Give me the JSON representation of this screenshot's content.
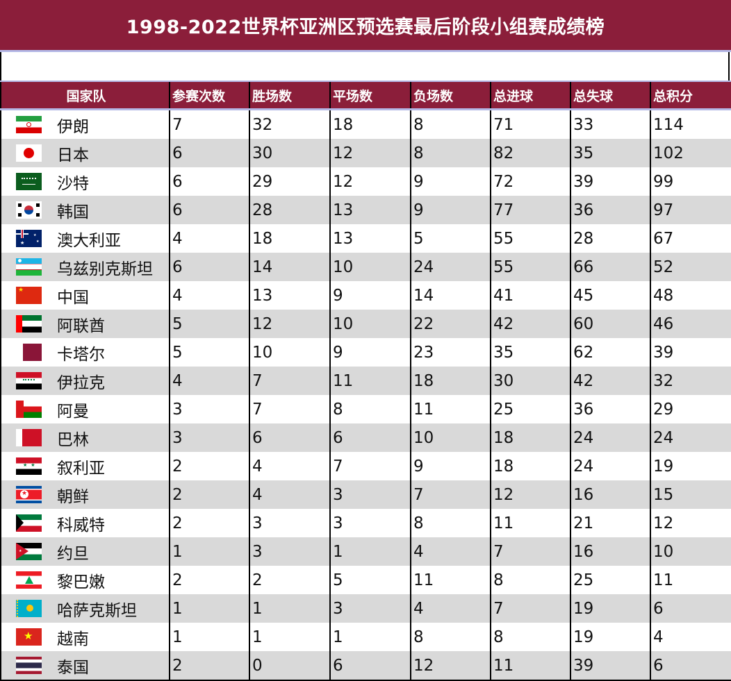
{
  "title": "1998-2022世界杯亚洲区预选赛最后阶段小组赛成绩榜",
  "colors": {
    "header_bg": "#8B1E3A",
    "header_text": "#FFFFFF",
    "row_alt": "#D9D9D9",
    "accent_line": "#B4B8E6"
  },
  "columns": [
    "国家队",
    "参赛次数",
    "胜场数",
    "平场数",
    "负场数",
    "总进球",
    "总失球",
    "总积分"
  ],
  "rows": [
    {
      "team": "伊朗",
      "flag": "iran-flag-icon",
      "apps": "7",
      "w": "32",
      "d": "18",
      "l": "8",
      "gf": "71",
      "ga": "33",
      "pts": "114"
    },
    {
      "team": "日本",
      "flag": "japan-flag-icon",
      "apps": "6",
      "w": "30",
      "d": "12",
      "l": "8",
      "gf": "82",
      "ga": "35",
      "pts": "102"
    },
    {
      "team": "沙特",
      "flag": "saudi-arabia-flag-icon",
      "apps": "6",
      "w": "29",
      "d": "12",
      "l": "9",
      "gf": "72",
      "ga": "39",
      "pts": "99"
    },
    {
      "team": "韩国",
      "flag": "south-korea-flag-icon",
      "apps": "6",
      "w": "28",
      "d": "13",
      "l": "9",
      "gf": "77",
      "ga": "36",
      "pts": "97"
    },
    {
      "team": "澳大利亚",
      "flag": "australia-flag-icon",
      "apps": "4",
      "w": "18",
      "d": "13",
      "l": "5",
      "gf": "55",
      "ga": "28",
      "pts": "67"
    },
    {
      "team": "乌兹别克斯坦",
      "flag": "uzbekistan-flag-icon",
      "apps": "6",
      "w": "14",
      "d": "10",
      "l": "24",
      "gf": "55",
      "ga": "66",
      "pts": "52"
    },
    {
      "team": "中国",
      "flag": "china-flag-icon",
      "apps": "4",
      "w": "13",
      "d": "9",
      "l": "14",
      "gf": "41",
      "ga": "45",
      "pts": "48"
    },
    {
      "team": "阿联酋",
      "flag": "uae-flag-icon",
      "apps": "5",
      "w": "12",
      "d": "10",
      "l": "22",
      "gf": "42",
      "ga": "60",
      "pts": "46"
    },
    {
      "team": "卡塔尔",
      "flag": "qatar-flag-icon",
      "apps": "5",
      "w": "10",
      "d": "9",
      "l": "23",
      "gf": "35",
      "ga": "62",
      "pts": "39"
    },
    {
      "team": "伊拉克",
      "flag": "iraq-flag-icon",
      "apps": "4",
      "w": "7",
      "d": "11",
      "l": "18",
      "gf": "30",
      "ga": "42",
      "pts": "32"
    },
    {
      "team": "阿曼",
      "flag": "oman-flag-icon",
      "apps": "3",
      "w": "7",
      "d": "8",
      "l": "11",
      "gf": "25",
      "ga": "36",
      "pts": "29"
    },
    {
      "team": "巴林",
      "flag": "bahrain-flag-icon",
      "apps": "3",
      "w": "6",
      "d": "6",
      "l": "10",
      "gf": "18",
      "ga": "24",
      "pts": "24"
    },
    {
      "team": "叙利亚",
      "flag": "syria-flag-icon",
      "apps": "2",
      "w": "4",
      "d": "7",
      "l": "9",
      "gf": "18",
      "ga": "24",
      "pts": "19"
    },
    {
      "team": "朝鲜",
      "flag": "north-korea-flag-icon",
      "apps": "2",
      "w": "4",
      "d": "3",
      "l": "7",
      "gf": "12",
      "ga": "16",
      "pts": "15"
    },
    {
      "team": "科威特",
      "flag": "kuwait-flag-icon",
      "apps": "2",
      "w": "3",
      "d": "3",
      "l": "8",
      "gf": "11",
      "ga": "21",
      "pts": "12"
    },
    {
      "team": "约旦",
      "flag": "jordan-flag-icon",
      "apps": "1",
      "w": "3",
      "d": "1",
      "l": "4",
      "gf": "7",
      "ga": "16",
      "pts": "10"
    },
    {
      "team": "黎巴嫩",
      "flag": "lebanon-flag-icon",
      "apps": "2",
      "w": "2",
      "d": "5",
      "l": "11",
      "gf": "8",
      "ga": "25",
      "pts": "11"
    },
    {
      "team": "哈萨克斯坦",
      "flag": "kazakhstan-flag-icon",
      "apps": "1",
      "w": "1",
      "d": "3",
      "l": "4",
      "gf": "7",
      "ga": "19",
      "pts": "6"
    },
    {
      "team": "越南",
      "flag": "vietnam-flag-icon",
      "apps": "1",
      "w": "1",
      "d": "1",
      "l": "8",
      "gf": "8",
      "ga": "19",
      "pts": "4"
    },
    {
      "team": "泰国",
      "flag": "thailand-flag-icon",
      "apps": "2",
      "w": "0",
      "d": "6",
      "l": "12",
      "gf": "11",
      "ga": "39",
      "pts": "6"
    }
  ],
  "chart_data": {
    "type": "table",
    "title": "1998-2022世界杯亚洲区预选赛最后阶段小组赛成绩榜",
    "columns": [
      "国家队",
      "参赛次数",
      "胜场数",
      "平场数",
      "负场数",
      "总进球",
      "总失球",
      "总积分"
    ],
    "rows": [
      [
        "伊朗",
        7,
        32,
        18,
        8,
        71,
        33,
        114
      ],
      [
        "日本",
        6,
        30,
        12,
        8,
        82,
        35,
        102
      ],
      [
        "沙特",
        6,
        29,
        12,
        9,
        72,
        39,
        99
      ],
      [
        "韩国",
        6,
        28,
        13,
        9,
        77,
        36,
        97
      ],
      [
        "澳大利亚",
        4,
        18,
        13,
        5,
        55,
        28,
        67
      ],
      [
        "乌兹别克斯坦",
        6,
        14,
        10,
        24,
        55,
        66,
        52
      ],
      [
        "中国",
        4,
        13,
        9,
        14,
        41,
        45,
        48
      ],
      [
        "阿联酋",
        5,
        12,
        10,
        22,
        42,
        60,
        46
      ],
      [
        "卡塔尔",
        5,
        10,
        9,
        23,
        35,
        62,
        39
      ],
      [
        "伊拉克",
        4,
        7,
        11,
        18,
        30,
        42,
        32
      ],
      [
        "阿曼",
        3,
        7,
        8,
        11,
        25,
        36,
        29
      ],
      [
        "巴林",
        3,
        6,
        6,
        10,
        18,
        24,
        24
      ],
      [
        "叙利亚",
        2,
        4,
        7,
        9,
        18,
        24,
        19
      ],
      [
        "朝鲜",
        2,
        4,
        3,
        7,
        12,
        16,
        15
      ],
      [
        "科威特",
        2,
        3,
        3,
        8,
        11,
        21,
        12
      ],
      [
        "约旦",
        1,
        3,
        1,
        4,
        7,
        16,
        10
      ],
      [
        "黎巴嫩",
        2,
        2,
        5,
        11,
        8,
        25,
        11
      ],
      [
        "哈萨克斯坦",
        1,
        1,
        3,
        4,
        7,
        19,
        6
      ],
      [
        "越南",
        1,
        1,
        1,
        8,
        8,
        19,
        4
      ],
      [
        "泰国",
        2,
        0,
        6,
        12,
        11,
        39,
        6
      ]
    ]
  }
}
